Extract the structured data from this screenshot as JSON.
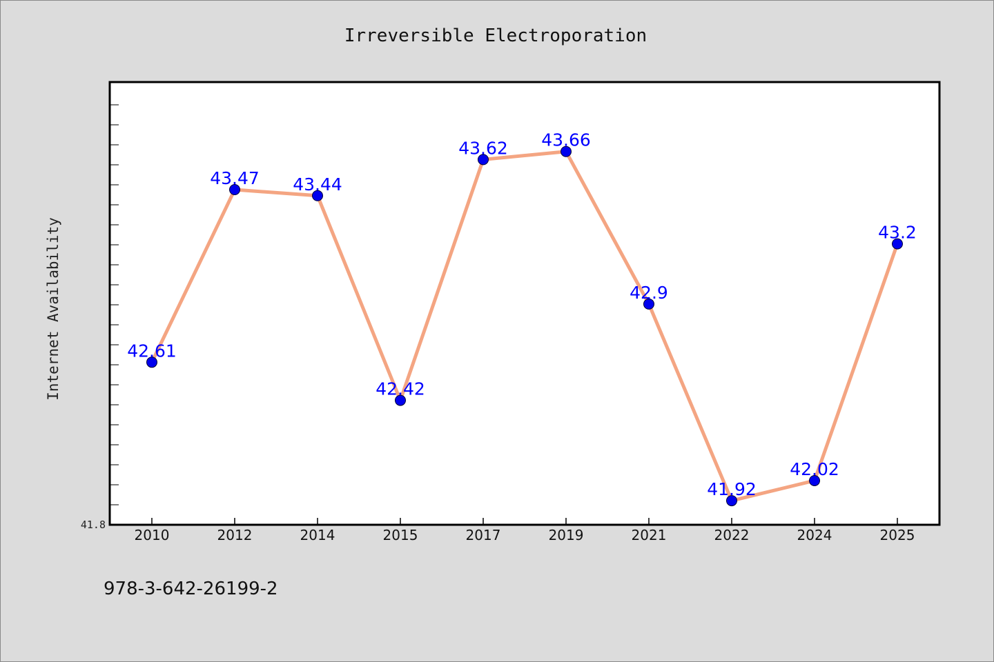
{
  "chart_data": {
    "type": "line",
    "title": "Irreversible Electroporation",
    "xlabel": "",
    "ylabel": "Internet Availability",
    "categories": [
      "2010",
      "2012",
      "2014",
      "2015",
      "2017",
      "2019",
      "2021",
      "2022",
      "2024",
      "2025"
    ],
    "series": [
      {
        "values": [
          42.61,
          43.47,
          43.44,
          42.42,
          43.62,
          43.66,
          42.9,
          41.92,
          42.02,
          43.2
        ],
        "data_labels": [
          "42.61",
          "43.47",
          "43.44",
          "42.42",
          "43.62",
          "43.66",
          "42.9",
          "41.92",
          "42.02",
          "43.2"
        ],
        "line_color": "#f4a582",
        "marker_color": "#0000ee"
      }
    ],
    "ylim": [
      41.8,
      44.0
    ],
    "y_min_label": "41.8",
    "grid": false,
    "legend": "none"
  },
  "footer": {
    "isbn": "978-3-642-26199-2"
  },
  "colors": {
    "background": "#dcdcdc",
    "plot_background": "#ffffff",
    "label_color": "#0000ff"
  }
}
